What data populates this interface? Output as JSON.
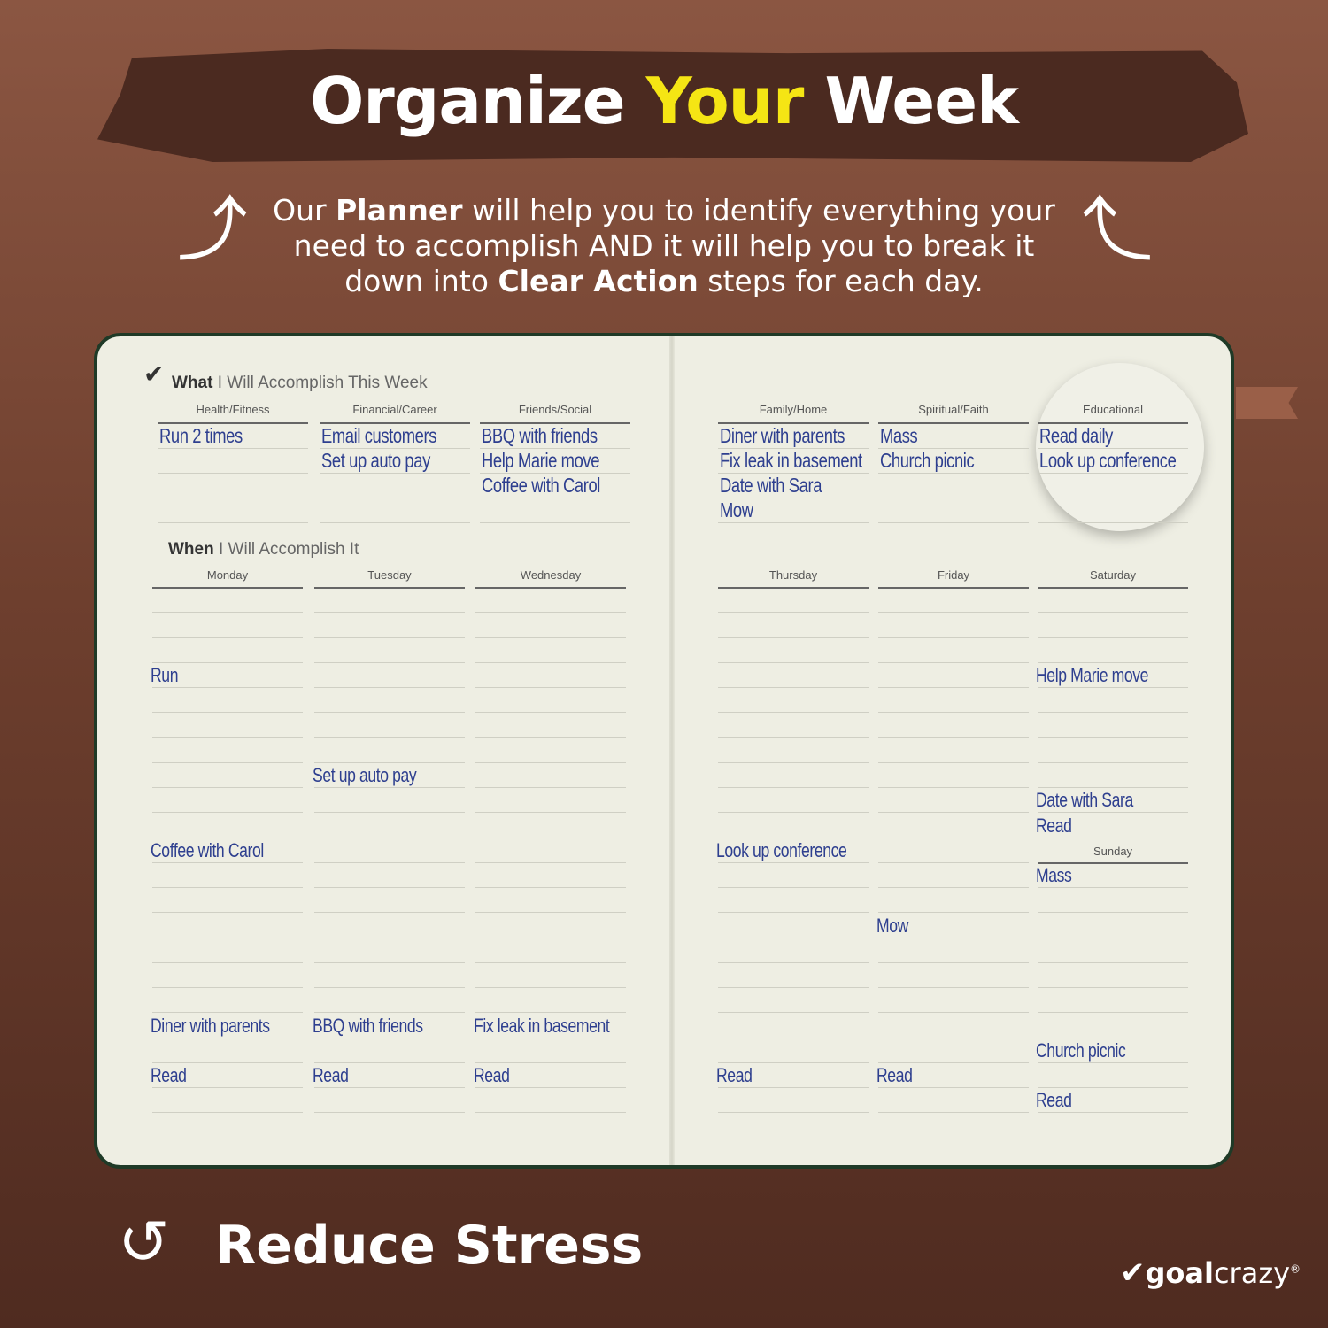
{
  "header": {
    "title_part1": "Organize",
    "title_highlight": "Your",
    "title_part2": "Week"
  },
  "intro": {
    "t1": "Our ",
    "b1": "Planner",
    "t2": " will help you to identify everything your need to accomplish AND it will help you to break it down into ",
    "b2": "Clear Action",
    "t3": " steps for each day."
  },
  "colors": {
    "highlight": "#f5e514",
    "ink": "#2e3f8f",
    "border": "#1f3a27"
  },
  "planner": {
    "what_bold": "What",
    "what_rest": " I Will Accomplish This Week",
    "when_bold": "When",
    "when_rest": " I Will Accomplish It",
    "categories": [
      {
        "label": "Health/Fitness",
        "entries": [
          "Run 2 times",
          "",
          "",
          ""
        ]
      },
      {
        "label": "Financial/Career",
        "entries": [
          "Email customers",
          "Set up auto pay",
          "",
          ""
        ]
      },
      {
        "label": "Friends/Social",
        "entries": [
          "BBQ with friends",
          "Help Marie move",
          "Coffee with Carol",
          ""
        ]
      },
      {
        "label": "Family/Home",
        "entries": [
          "Diner with parents",
          "Fix leak in basement",
          "Date with Sara",
          "Mow"
        ]
      },
      {
        "label": "Spiritual/Faith",
        "entries": [
          "Mass",
          "Church picnic",
          "",
          ""
        ]
      },
      {
        "label": "Educational",
        "entries": [
          "Read daily",
          "Look up conference",
          "",
          ""
        ]
      }
    ],
    "days": [
      {
        "label": "Monday",
        "slots": [
          "",
          "",
          "",
          "Run",
          "",
          "",
          "",
          "",
          "",
          "",
          "Coffee with Carol",
          "",
          "",
          "",
          "",
          "",
          "",
          "Diner with parents",
          "",
          "Read",
          ""
        ]
      },
      {
        "label": "Tuesday",
        "slots": [
          "",
          "",
          "",
          "",
          "",
          "",
          "",
          "Set up auto pay",
          "",
          "",
          "",
          "",
          "",
          "",
          "",
          "",
          "",
          "BBQ with friends",
          "",
          "Read",
          ""
        ]
      },
      {
        "label": "Wednesday",
        "slots": [
          "",
          "",
          "",
          "",
          "",
          "",
          "",
          "",
          "",
          "",
          "",
          "",
          "",
          "",
          "",
          "",
          "",
          "Fix leak in basement",
          "",
          "Read",
          ""
        ]
      },
      {
        "label": "Thursday",
        "slots": [
          "",
          "",
          "",
          "",
          "",
          "",
          "",
          "",
          "",
          "",
          "Look up conference",
          "",
          "",
          "",
          "",
          "",
          "",
          "",
          "",
          "Read",
          ""
        ]
      },
      {
        "label": "Friday",
        "slots": [
          "",
          "",
          "",
          "",
          "",
          "",
          "",
          "",
          "",
          "",
          "",
          "",
          "",
          "Mow",
          "",
          "",
          "",
          "",
          "",
          "Read",
          ""
        ]
      },
      {
        "label": "Saturday",
        "slots": [
          "",
          "",
          "",
          "Help Marie move",
          "",
          "",
          "",
          "",
          "Date with Sara",
          "Read"
        ]
      },
      {
        "label": "Sunday",
        "slots": [
          "Mass",
          "",
          "",
          "",
          "",
          "",
          "",
          "Church picnic",
          "",
          "Read"
        ]
      }
    ]
  },
  "footer": {
    "tagline": "Reduce Stress",
    "logo_bold": "goal",
    "logo_rest": "crazy",
    "logo_mark": "®"
  }
}
